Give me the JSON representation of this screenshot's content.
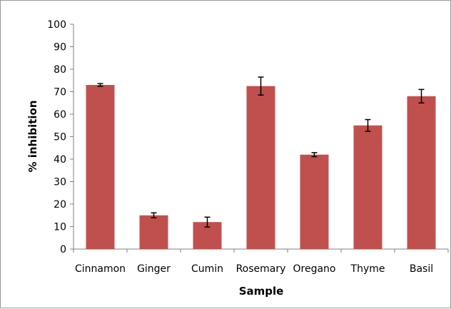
{
  "chart_data": {
    "type": "bar",
    "categories": [
      "Cinnamon",
      "Ginger",
      "Cumin",
      "Rosemary",
      "Oregano",
      "Thyme",
      "Basil"
    ],
    "values": [
      73,
      15,
      12,
      72.5,
      42,
      55,
      68
    ],
    "errors": [
      0.6,
      1.1,
      2.2,
      4.0,
      0.9,
      2.6,
      3.0
    ],
    "xlabel": "Sample",
    "ylabel": "% inhibition",
    "ylim": [
      0,
      100
    ],
    "yticks": [
      0,
      10,
      20,
      30,
      40,
      50,
      60,
      70,
      80,
      90,
      100
    ],
    "grid": false,
    "legend": "none",
    "bar_color": "#c0504d"
  }
}
